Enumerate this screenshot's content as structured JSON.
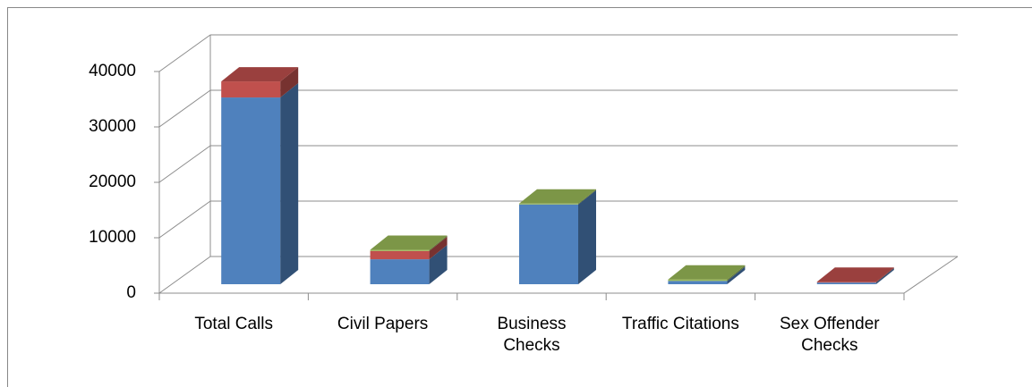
{
  "chart_data": {
    "type": "bar3d_stacked",
    "categories": [
      "Total Calls",
      "Civil Papers",
      "Business Checks",
      "Traffic Citations",
      "Sex Offender Checks"
    ],
    "series": [
      {
        "color": "#4f81bd",
        "values": [
          33700,
          4500,
          14400,
          600,
          300
        ]
      },
      {
        "color": "#c0504d",
        "values": [
          2900,
          1500,
          0,
          0,
          150
        ]
      },
      {
        "color": "#9bbb59",
        "values": [
          0,
          200,
          150,
          250,
          0
        ]
      }
    ],
    "ylim": [
      0,
      40000
    ],
    "yticks": [
      0,
      10000,
      20000,
      30000,
      40000
    ],
    "grid": true
  }
}
